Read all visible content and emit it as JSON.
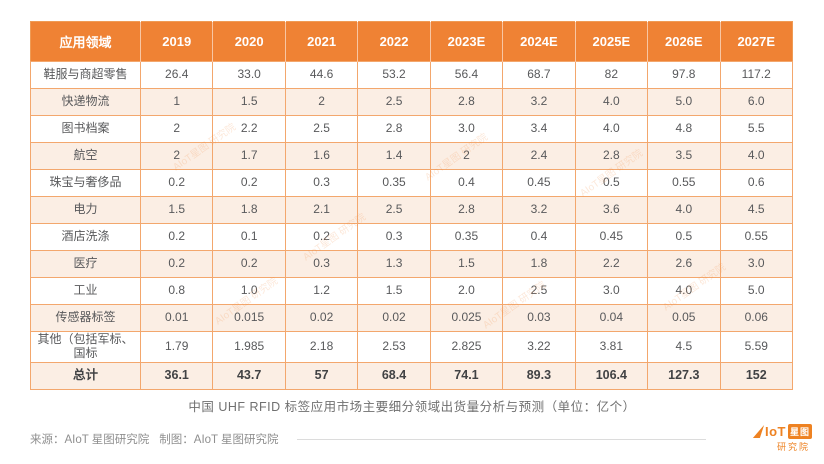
{
  "chart_data": {
    "type": "table",
    "title": "中国 UHF RFID 标签应用市场主要细分领域出货量分析与预测（单位：亿个）",
    "unit": "亿个",
    "columns": [
      "应用领域",
      "2019",
      "2020",
      "2021",
      "2022",
      "2023E",
      "2024E",
      "2025E",
      "2026E",
      "2027E"
    ],
    "rows": [
      {
        "label": "鞋服与商超零售",
        "values": [
          "26.4",
          "33.0",
          "44.6",
          "53.2",
          "56.4",
          "68.7",
          "82",
          "97.8",
          "117.2"
        ]
      },
      {
        "label": "快递物流",
        "values": [
          "1",
          "1.5",
          "2",
          "2.5",
          "2.8",
          "3.2",
          "4.0",
          "5.0",
          "6.0"
        ]
      },
      {
        "label": "图书档案",
        "values": [
          "2",
          "2.2",
          "2.5",
          "2.8",
          "3.0",
          "3.4",
          "4.0",
          "4.8",
          "5.5"
        ]
      },
      {
        "label": "航空",
        "values": [
          "2",
          "1.7",
          "1.6",
          "1.4",
          "2",
          "2.4",
          "2.8",
          "3.5",
          "4.0"
        ]
      },
      {
        "label": "珠宝与奢侈品",
        "values": [
          "0.2",
          "0.2",
          "0.3",
          "0.35",
          "0.4",
          "0.45",
          "0.5",
          "0.55",
          "0.6"
        ]
      },
      {
        "label": "电力",
        "values": [
          "1.5",
          "1.8",
          "2.1",
          "2.5",
          "2.8",
          "3.2",
          "3.6",
          "4.0",
          "4.5"
        ]
      },
      {
        "label": "酒店洗涤",
        "values": [
          "0.2",
          "0.1",
          "0.2",
          "0.3",
          "0.35",
          "0.4",
          "0.45",
          "0.5",
          "0.55"
        ]
      },
      {
        "label": "医疗",
        "values": [
          "0.2",
          "0.2",
          "0.3",
          "1.3",
          "1.5",
          "1.8",
          "2.2",
          "2.6",
          "3.0"
        ]
      },
      {
        "label": "工业",
        "values": [
          "0.8",
          "1.0",
          "1.2",
          "1.5",
          "2.0",
          "2.5",
          "3.0",
          "4.0",
          "5.0"
        ]
      },
      {
        "label": "传感器标签",
        "values": [
          "0.01",
          "0.015",
          "0.02",
          "0.02",
          "0.025",
          "0.03",
          "0.04",
          "0.05",
          "0.06"
        ]
      },
      {
        "label": "其他（包括军标、国标",
        "values": [
          "1.79",
          "1.985",
          "2.18",
          "2.53",
          "2.825",
          "3.22",
          "3.81",
          "4.5",
          "5.59"
        ]
      },
      {
        "label": "总计",
        "bold": true,
        "values": [
          "36.1",
          "43.7",
          "57",
          "68.4",
          "74.1",
          "89.3",
          "106.4",
          "127.3",
          "152"
        ]
      }
    ]
  },
  "caption": "中国 UHF RFID 标签应用市场主要细分领域出货量分析与预测（单位：亿个）",
  "footer": {
    "source_label": "来源：AIoT 星图研究院",
    "maker_label": "制图：AIoT 星图研究院"
  },
  "logo": {
    "iot": "IoT",
    "boxed": "星图",
    "subtitle": "研究院"
  },
  "watermark": {
    "text": "AIoT星图 研究院"
  },
  "colors": {
    "header_bg": "#EF8234",
    "header_text": "#FFFFFF",
    "border": "#F3A76D",
    "stripe": "#FBEEE4",
    "cell_text": "#58595B",
    "logo_orange": "#EE8222",
    "caption_text": "#707070"
  }
}
